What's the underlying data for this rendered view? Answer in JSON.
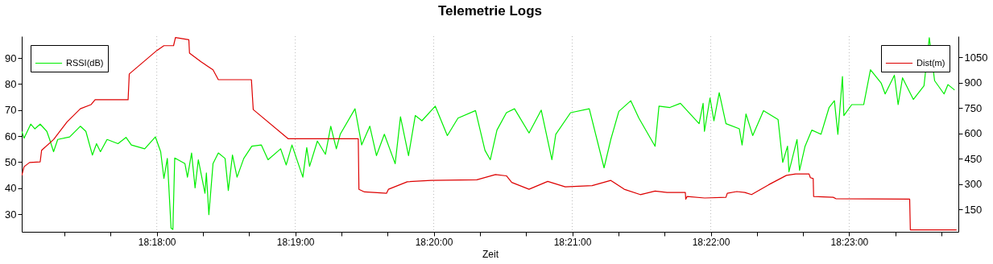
{
  "chart_data": {
    "type": "line",
    "title": "Telemetrie Logs",
    "xlabel": "Zeit",
    "xlim": [
      18.28375,
      18.39647
    ],
    "xticks": [
      {
        "value": 18.28889,
        "label": null
      },
      {
        "value": 18.29444,
        "label": null
      },
      {
        "value": 18.3,
        "label": "18:18:00"
      },
      {
        "value": 18.30556,
        "label": null
      },
      {
        "value": 18.31111,
        "label": null
      },
      {
        "value": 18.31667,
        "label": "18:19:00"
      },
      {
        "value": 18.32222,
        "label": null
      },
      {
        "value": 18.32778,
        "label": null
      },
      {
        "value": 18.33333,
        "label": "18:20:00"
      },
      {
        "value": 18.33889,
        "label": null
      },
      {
        "value": 18.34444,
        "label": null
      },
      {
        "value": 18.35,
        "label": "18:21:00"
      },
      {
        "value": 18.35556,
        "label": null
      },
      {
        "value": 18.36111,
        "label": null
      },
      {
        "value": 18.36667,
        "label": "18:22:00"
      },
      {
        "value": 18.37222,
        "label": null
      },
      {
        "value": 18.37778,
        "label": null
      },
      {
        "value": 18.38333,
        "label": "18:23:00"
      },
      {
        "value": 18.38889,
        "label": null
      },
      {
        "value": 18.39444,
        "label": null
      }
    ],
    "ylim": [
      23.2,
      98.4
    ],
    "yticks": [
      30,
      40,
      50,
      60,
      70,
      80,
      90
    ],
    "y2lim": [
      17,
      1174
    ],
    "y2ticks": [
      150,
      300,
      450,
      600,
      750,
      900,
      1050
    ],
    "grid": "x",
    "legend": "top left",
    "line_style": "solid",
    "series": [
      {
        "name": "RSSI(dB)",
        "color": "#00ee00",
        "x": [
          18.28375,
          18.28403,
          18.28483,
          18.28533,
          18.28597,
          18.28677,
          18.28711,
          18.28758,
          18.28808,
          18.28952,
          18.2908,
          18.29147,
          18.29225,
          18.29275,
          18.29322,
          18.29402,
          18.29533,
          18.2963,
          18.29694,
          18.29855,
          18.29983,
          18.30047,
          18.30086,
          18.30127,
          18.30172,
          18.30194,
          18.30216,
          18.30339,
          18.30369,
          18.30419,
          18.30461,
          18.305,
          18.3058,
          18.30597,
          18.30627,
          18.30677,
          18.30741,
          18.30822,
          18.30861,
          18.30911,
          18.30966,
          18.31047,
          18.31144,
          18.31258,
          18.31339,
          18.31491,
          18.31558,
          18.31627,
          18.31758,
          18.31805,
          18.31839,
          18.31933,
          18.3203,
          18.32094,
          18.32161,
          18.32208,
          18.32386,
          18.32466,
          18.32564,
          18.32644,
          18.32739,
          18.32869,
          18.32933,
          18.3303,
          18.33111,
          18.33191,
          18.33352,
          18.33497,
          18.33625,
          18.33836,
          18.3395,
          18.34014,
          18.34094,
          18.34208,
          18.34305,
          18.3448,
          18.34627,
          18.34755,
          18.34802,
          18.3498,
          18.35205,
          18.35383,
          18.35464,
          18.35561,
          18.35705,
          18.35802,
          18.35997,
          18.36044,
          18.36175,
          18.36302,
          18.36527,
          18.36575,
          18.36591,
          18.36658,
          18.36705,
          18.36769,
          18.3685,
          18.37011,
          18.37044,
          18.37091,
          18.37172,
          18.37302,
          18.37477,
          18.37533,
          18.37591,
          18.37608,
          18.37705,
          18.37736,
          18.37802,
          18.37883,
          18.37994,
          18.38091,
          18.38155,
          18.38197,
          18.38252,
          18.38269,
          18.38364,
          18.38508,
          18.38589,
          18.38719,
          18.38766,
          18.38877,
          18.38922,
          18.38975,
          18.39105,
          18.39233,
          18.39297,
          18.39361,
          18.39475,
          18.39522,
          18.39602
        ],
        "values": [
          61.8,
          59.2,
          64.6,
          62.8,
          64.6,
          61.8,
          58.7,
          54.0,
          58.7,
          59.7,
          63.8,
          61.8,
          52.7,
          57.1,
          54.0,
          58.7,
          57.1,
          59.5,
          56.6,
          55.1,
          59.7,
          54.0,
          43.7,
          51.4,
          24.6,
          24.1,
          51.6,
          49.4,
          44.2,
          53.5,
          40.1,
          50.9,
          38.0,
          45.8,
          29.8,
          49.4,
          53.5,
          51.4,
          39.1,
          52.7,
          44.2,
          51.4,
          56.1,
          56.6,
          50.9,
          55.1,
          48.9,
          56.6,
          44.2,
          55.6,
          48.4,
          58.1,
          53.0,
          63.8,
          55.1,
          60.7,
          70.5,
          56.6,
          63.8,
          52.5,
          60.7,
          49.4,
          67.4,
          52.5,
          67.9,
          65.9,
          71.5,
          60.2,
          66.9,
          69.8,
          54.5,
          50.9,
          62.3,
          69.0,
          70.5,
          61.2,
          70.0,
          50.9,
          60.7,
          69.0,
          70.5,
          47.8,
          58.7,
          69.5,
          73.6,
          66.9,
          56.1,
          71.5,
          71.0,
          72.6,
          64.8,
          72.6,
          61.8,
          74.6,
          65.9,
          76.7,
          64.8,
          62.8,
          56.6,
          68.5,
          60.2,
          69.8,
          66.4,
          49.9,
          56.1,
          46.3,
          58.7,
          46.8,
          56.1,
          62.3,
          60.7,
          71.0,
          73.6,
          60.7,
          82.9,
          67.9,
          72.1,
          72.1,
          85.5,
          80.3,
          76.2,
          83.4,
          72.1,
          82.4,
          74.1,
          79.3,
          97.8,
          81.3,
          76.2,
          79.8,
          77.7
        ]
      },
      {
        "name": "Dist(m)",
        "color": "#dd0000",
        "axis": "y2",
        "x": [
          18.28375,
          18.28403,
          18.28469,
          18.28597,
          18.28614,
          18.28758,
          18.28919,
          18.2908,
          18.29208,
          18.29258,
          18.29655,
          18.29669,
          18.30002,
          18.30086,
          18.30202,
          18.30225,
          18.30386,
          18.30394,
          18.30533,
          18.30677,
          18.30741,
          18.31139,
          18.31161,
          18.3158,
          18.32425,
          18.32433,
          18.325,
          18.32766,
          18.32789,
          18.33014,
          18.33302,
          18.33852,
          18.34077,
          18.34208,
          18.34272,
          18.3448,
          18.34705,
          18.34916,
          18.35239,
          18.35464,
          18.35625,
          18.35819,
          18.35997,
          18.36141,
          18.36361,
          18.36366,
          18.36383,
          18.36594,
          18.3685,
          18.36866,
          18.3698,
          18.37077,
          18.37158,
          18.37366,
          18.37578,
          18.37689,
          18.3785,
          18.37866,
          18.379,
          18.37905,
          18.38141,
          18.38172,
          18.39061,
          18.39069,
          18.39625
        ],
        "values": [
          350,
          402,
          427,
          431,
          499,
          563,
          666,
          745,
          769,
          798,
          798,
          951,
          1090,
          1118,
          1118,
          1166,
          1153,
          1074,
          1023,
          975,
          917,
          917,
          740,
          568,
          568,
          268,
          253,
          245,
          269,
          313,
          321,
          325,
          356,
          348,
          309,
          269,
          315,
          283,
          290,
          321,
          269,
          237,
          258,
          250,
          250,
          210,
          226,
          217,
          221,
          245,
          255,
          250,
          237,
          296,
          351,
          359,
          359,
          337,
          332,
          226,
          221,
          213,
          210,
          28,
          28
        ]
      }
    ]
  }
}
